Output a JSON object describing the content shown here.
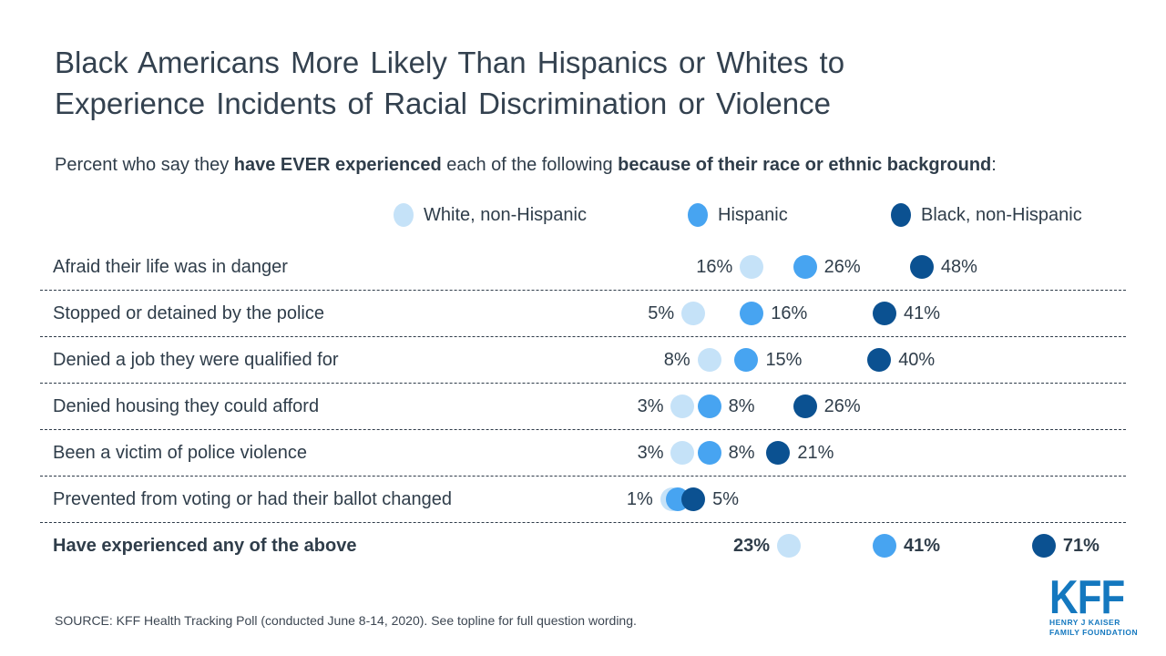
{
  "title": {
    "line1": "Black Americans More Likely Than Hispanics or Whites to",
    "line2": "Experience Incidents of Racial Discrimination or Violence"
  },
  "subtitle": {
    "segments": [
      {
        "text": "Percent who say they ",
        "bold": false
      },
      {
        "text": "have EVER experienced",
        "bold": true
      },
      {
        "text": " each of the following ",
        "bold": false
      },
      {
        "text": "because of their race or ethnic background",
        "bold": true
      },
      {
        "text": ":",
        "bold": false
      }
    ]
  },
  "colors": {
    "white": "#c5e2f8",
    "hispanic": "#47a4f1",
    "black": "#0b5191",
    "text": "#2f3d4a",
    "kff_blue": "#1478bf",
    "dashed_line": "#2e3b49"
  },
  "legend": {
    "items": [
      {
        "id": "white",
        "label": "White, non-Hispanic"
      },
      {
        "id": "hispanic",
        "label": "Hispanic"
      },
      {
        "id": "black",
        "label": "Black, non-Hispanic"
      }
    ]
  },
  "chart_data": {
    "type": "scatter",
    "subtype": "dot-plot",
    "series_names": [
      "White, non-Hispanic",
      "Hispanic",
      "Black, non-Hispanic"
    ],
    "x_axis": {
      "unit": "percent",
      "min": 0,
      "max": 85,
      "gridlines": false
    },
    "rows": [
      {
        "label": "Afraid their life was in danger",
        "bold": false,
        "values": {
          "white": 16,
          "hispanic": 26,
          "black": 48
        },
        "labels": {
          "white": "16%",
          "hispanic": "26%",
          "black": "48%"
        }
      },
      {
        "label": "Stopped or detained by the police",
        "bold": false,
        "values": {
          "white": 5,
          "hispanic": 16,
          "black": 41
        },
        "labels": {
          "white": "5%",
          "hispanic": "16%",
          "black": "41%"
        }
      },
      {
        "label": "Denied a job they were qualified for",
        "bold": false,
        "values": {
          "white": 8,
          "hispanic": 15,
          "black": 40
        },
        "labels": {
          "white": "8%",
          "hispanic": "15%",
          "black": "40%"
        }
      },
      {
        "label": "Denied housing they could afford",
        "bold": false,
        "values": {
          "white": 3,
          "hispanic": 8,
          "black": 26
        },
        "labels": {
          "white": "3%",
          "hispanic": "8%",
          "black": "26%"
        }
      },
      {
        "label": "Been a victim of police violence",
        "bold": false,
        "values": {
          "white": 3,
          "hispanic": 8,
          "black": 21
        },
        "labels": {
          "white": "3%",
          "hispanic": "8%",
          "black": "21%"
        }
      },
      {
        "label": "Prevented from voting or had their ballot changed",
        "bold": false,
        "values": {
          "white": 1,
          "hispanic": 2,
          "black": 5
        },
        "labels": {
          "white": "1%",
          "hispanic": "",
          "black": "5%"
        }
      },
      {
        "label": "Have experienced any of the above",
        "bold": true,
        "values": {
          "white": 23,
          "hispanic": 41,
          "black": 71
        },
        "labels": {
          "white": "23%",
          "hispanic": "41%",
          "black": "71%"
        }
      }
    ]
  },
  "source": "SOURCE: KFF Health Tracking Poll (conducted June 8-14, 2020). See topline for full question wording.",
  "logo": {
    "text": "KFF",
    "sub1": "HENRY J KAISER",
    "sub2": "FAMILY FOUNDATION"
  }
}
